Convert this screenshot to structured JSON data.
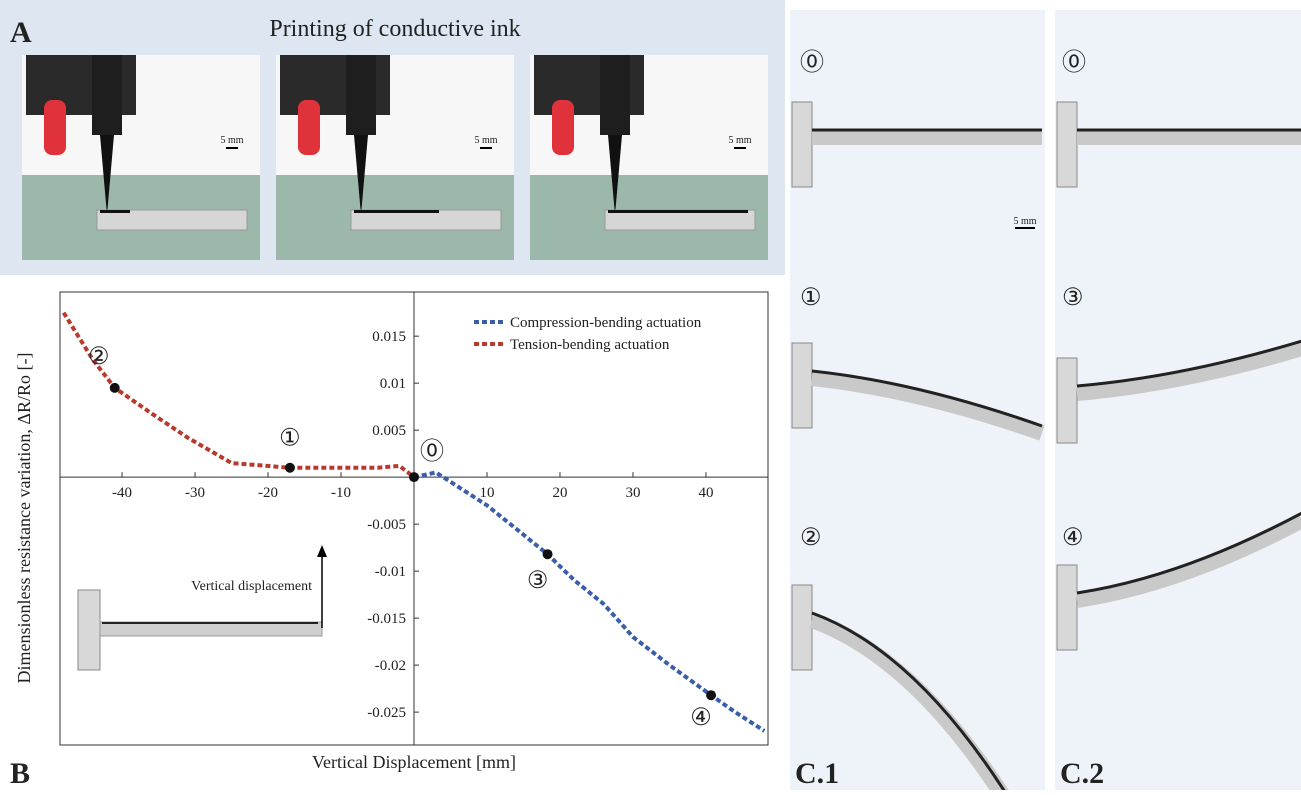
{
  "panel_a": {
    "label": "A",
    "title": "Printing of conductive ink",
    "scales": [
      "5 mm",
      "5 mm",
      "5 mm"
    ]
  },
  "chart_data": {
    "type": "line",
    "label": "B",
    "x_label": "Vertical Displacement [mm]",
    "y_label": "Dimensionless resistance variation, ΔR/Ro [-]",
    "xlim": [
      -48.5,
      48.5
    ],
    "xticks": [
      -40,
      -30,
      -20,
      -10,
      10,
      20,
      30,
      40
    ],
    "ylim": [
      -0.0285,
      0.0197
    ],
    "yticks": [
      0.015,
      0.01,
      0.005,
      -0.005,
      -0.01,
      -0.015,
      -0.02,
      -0.025
    ],
    "legend": "top-right",
    "series": [
      {
        "name": "Compression-bending actuation",
        "color": "#3a5ea8",
        "x": [
          0,
          3,
          6,
          10,
          14,
          18.3,
          22,
          26,
          30,
          35,
          40.7,
          44,
          48
        ],
        "values": [
          0,
          0.0005,
          -0.001,
          -0.003,
          -0.0055,
          -0.0082,
          -0.011,
          -0.0135,
          -0.017,
          -0.02,
          -0.0232,
          -0.025,
          -0.027
        ]
      },
      {
        "name": "Tension-bending actuation",
        "color": "#b83a2e",
        "x": [
          -48,
          -44,
          -41,
          -36,
          -31,
          -25,
          -17,
          -10,
          -5,
          -2,
          0
        ],
        "values": [
          0.0175,
          0.0125,
          0.0095,
          0.0068,
          0.0042,
          0.0015,
          0.001,
          0.001,
          0.001,
          0.0012,
          0
        ]
      }
    ],
    "annotations": [
      {
        "label": "⓪",
        "x": 0,
        "y": 0
      },
      {
        "label": "①",
        "x": -17,
        "y": 0.001
      },
      {
        "label": "②",
        "x": -41,
        "y": 0.0095
      },
      {
        "label": "③",
        "x": 18.3,
        "y": -0.0082
      },
      {
        "label": "④",
        "x": 40.7,
        "y": -0.0232
      }
    ],
    "inset_label": "Vertical displacement"
  },
  "panel_c1": {
    "label": "C.1",
    "steps": [
      "⓪",
      "①",
      "②"
    ],
    "scale": "5 mm"
  },
  "panel_c2": {
    "label": "C.2",
    "steps": [
      "⓪",
      "③",
      "④"
    ]
  }
}
